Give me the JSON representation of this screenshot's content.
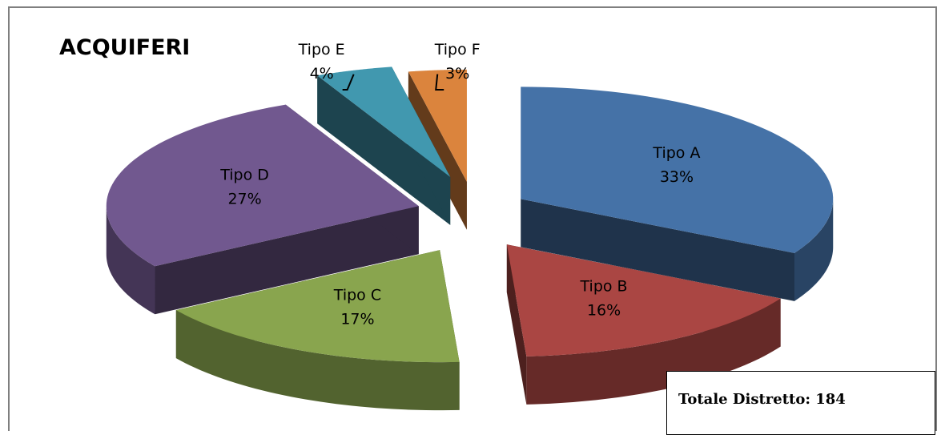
{
  "chart_data": {
    "type": "pie",
    "title": "ACQUIFERI",
    "categories": [
      "Tipo A",
      "Tipo B",
      "Tipo C",
      "Tipo D",
      "Tipo E",
      "Tipo F"
    ],
    "values": [
      33,
      16,
      17,
      27,
      4,
      3
    ],
    "value_labels": [
      "33%",
      "16%",
      "17%",
      "27%",
      "4%",
      "3%"
    ],
    "colors": [
      "#4572A7",
      "#AA4643",
      "#89A54E",
      "#71588F",
      "#4198AF",
      "#DB843D"
    ],
    "style": "3d-exploded"
  },
  "total_box": {
    "text": "Totale Distretto: 184"
  }
}
